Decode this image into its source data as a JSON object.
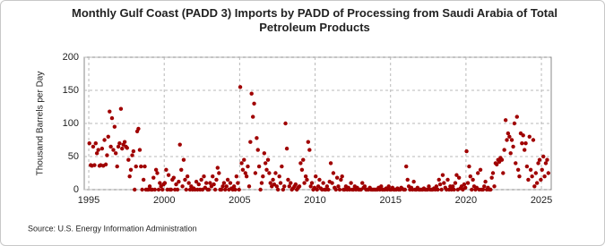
{
  "chart_data": {
    "type": "scatter",
    "title": "Monthly Gulf Coast (PADD 3) Imports by PADD of Processing from Saudi Arabia of Total Petroleum Products",
    "y_label": "Thousand Barrels per Day",
    "source": "Source: U.S. Energy Information Administration",
    "color": "#a00000",
    "grid": true,
    "xlim": [
      1994.7,
      2025.65
    ],
    "ylim": [
      0,
      200
    ],
    "xticks": [
      1995,
      2000,
      2005,
      2010,
      2015,
      2020,
      2025
    ],
    "yticks": [
      0,
      50,
      100,
      150,
      200
    ],
    "x": [
      1995.04,
      1995.13,
      1995.21,
      1995.29,
      1995.38,
      1995.46,
      1995.54,
      1995.63,
      1995.71,
      1995.79,
      1995.88,
      1995.96,
      1996.04,
      1996.13,
      1996.21,
      1996.29,
      1996.38,
      1996.46,
      1996.54,
      1996.63,
      1996.71,
      1996.79,
      1996.88,
      1996.96,
      1997.04,
      1997.13,
      1997.21,
      1997.29,
      1997.38,
      1997.46,
      1997.54,
      1997.63,
      1997.71,
      1997.79,
      1997.88,
      1997.96,
      1998.04,
      1998.13,
      1998.21,
      1998.29,
      1998.38,
      1998.46,
      1998.54,
      1998.63,
      1998.71,
      1998.79,
      1998.88,
      1998.96,
      1999.04,
      1999.13,
      1999.21,
      1999.29,
      1999.38,
      1999.46,
      1999.54,
      1999.63,
      1999.71,
      1999.79,
      1999.88,
      1999.96,
      2000.04,
      2000.13,
      2000.21,
      2000.29,
      2000.38,
      2000.46,
      2000.54,
      2000.63,
      2000.71,
      2000.79,
      2000.88,
      2000.96,
      2001.04,
      2001.13,
      2001.21,
      2001.29,
      2001.38,
      2001.46,
      2001.54,
      2001.63,
      2001.71,
      2001.79,
      2001.88,
      2001.96,
      2002.04,
      2002.13,
      2002.21,
      2002.29,
      2002.38,
      2002.46,
      2002.54,
      2002.63,
      2002.71,
      2002.79,
      2002.88,
      2002.96,
      2003.04,
      2003.13,
      2003.21,
      2003.29,
      2003.38,
      2003.46,
      2003.54,
      2003.63,
      2003.71,
      2003.79,
      2003.88,
      2003.96,
      2004.04,
      2004.13,
      2004.21,
      2004.29,
      2004.38,
      2004.46,
      2004.54,
      2004.63,
      2004.71,
      2004.79,
      2004.88,
      2004.96,
      2005.04,
      2005.13,
      2005.21,
      2005.29,
      2005.38,
      2005.46,
      2005.54,
      2005.63,
      2005.71,
      2005.79,
      2005.88,
      2005.96,
      2006.04,
      2006.13,
      2006.21,
      2006.29,
      2006.38,
      2006.46,
      2006.54,
      2006.63,
      2006.71,
      2006.79,
      2006.88,
      2006.96,
      2007.04,
      2007.13,
      2007.21,
      2007.29,
      2007.38,
      2007.46,
      2007.54,
      2007.63,
      2007.71,
      2007.79,
      2007.88,
      2007.96,
      2008.04,
      2008.13,
      2008.21,
      2008.29,
      2008.38,
      2008.46,
      2008.54,
      2008.63,
      2008.71,
      2008.79,
      2008.88,
      2008.96,
      2009.04,
      2009.13,
      2009.21,
      2009.29,
      2009.38,
      2009.46,
      2009.54,
      2009.63,
      2009.71,
      2009.79,
      2009.88,
      2009.96,
      2010.04,
      2010.13,
      2010.21,
      2010.29,
      2010.38,
      2010.46,
      2010.54,
      2010.63,
      2010.71,
      2010.79,
      2010.88,
      2010.96,
      2011.04,
      2011.13,
      2011.21,
      2011.29,
      2011.38,
      2011.46,
      2011.54,
      2011.63,
      2011.71,
      2011.79,
      2011.88,
      2011.96,
      2012.04,
      2012.13,
      2012.21,
      2012.29,
      2012.38,
      2012.46,
      2012.54,
      2012.63,
      2012.71,
      2012.79,
      2012.88,
      2012.96,
      2013.04,
      2013.13,
      2013.21,
      2013.29,
      2013.38,
      2013.46,
      2013.54,
      2013.63,
      2013.71,
      2013.79,
      2013.88,
      2013.96,
      2014.04,
      2014.13,
      2014.21,
      2014.29,
      2014.38,
      2014.46,
      2014.54,
      2014.63,
      2014.71,
      2014.79,
      2014.88,
      2014.96,
      2015.04,
      2015.13,
      2015.21,
      2015.29,
      2015.38,
      2015.46,
      2015.54,
      2015.63,
      2015.71,
      2015.79,
      2015.88,
      2015.96,
      2016.04,
      2016.13,
      2016.21,
      2016.29,
      2016.38,
      2016.46,
      2016.54,
      2016.63,
      2016.71,
      2016.79,
      2016.88,
      2016.96,
      2017.04,
      2017.13,
      2017.21,
      2017.29,
      2017.38,
      2017.46,
      2017.54,
      2017.63,
      2017.71,
      2017.79,
      2017.88,
      2017.96,
      2018.04,
      2018.13,
      2018.21,
      2018.29,
      2018.38,
      2018.46,
      2018.54,
      2018.63,
      2018.71,
      2018.79,
      2018.88,
      2018.96,
      2019.04,
      2019.13,
      2019.21,
      2019.29,
      2019.38,
      2019.46,
      2019.54,
      2019.63,
      2019.71,
      2019.79,
      2019.88,
      2019.96,
      2020.04,
      2020.13,
      2020.21,
      2020.29,
      2020.38,
      2020.46,
      2020.54,
      2020.63,
      2020.71,
      2020.79,
      2020.88,
      2020.96,
      2021.04,
      2021.13,
      2021.21,
      2021.29,
      2021.38,
      2021.46,
      2021.54,
      2021.63,
      2021.71,
      2021.79,
      2021.88,
      2021.96,
      2022.04,
      2022.13,
      2022.21,
      2022.29,
      2022.38,
      2022.46,
      2022.54,
      2022.63,
      2022.71,
      2022.79,
      2022.88,
      2022.96,
      2023.04,
      2023.13,
      2023.21,
      2023.29,
      2023.38,
      2023.46,
      2023.54,
      2023.63,
      2023.71,
      2023.79,
      2023.88,
      2023.96,
      2024.04,
      2024.13,
      2024.21,
      2024.29,
      2024.38,
      2024.46,
      2024.54,
      2024.63,
      2024.71,
      2024.79,
      2024.88,
      2024.96,
      2025.04,
      2025.13,
      2025.21,
      2025.29,
      2025.38,
      2025.46
    ],
    "values": [
      70,
      37,
      36,
      65,
      37,
      70,
      55,
      60,
      36,
      37,
      62,
      36,
      75,
      38,
      52,
      80,
      118,
      65,
      108,
      60,
      95,
      55,
      35,
      65,
      70,
      122,
      62,
      68,
      72,
      65,
      63,
      45,
      20,
      30,
      52,
      58,
      0,
      35,
      88,
      92,
      60,
      35,
      0,
      15,
      35,
      0,
      0,
      0,
      5,
      0,
      0,
      18,
      0,
      30,
      25,
      0,
      10,
      5,
      0,
      8,
      10,
      30,
      0,
      22,
      0,
      0,
      15,
      18,
      0,
      8,
      0,
      12,
      68,
      30,
      5,
      45,
      15,
      0,
      20,
      10,
      0,
      5,
      0,
      2,
      0,
      12,
      0,
      8,
      0,
      15,
      0,
      20,
      3,
      10,
      0,
      0,
      10,
      5,
      20,
      8,
      0,
      15,
      33,
      25,
      0,
      0,
      5,
      10,
      0,
      5,
      15,
      0,
      10,
      2,
      0,
      5,
      0,
      20,
      10,
      0,
      155,
      40,
      30,
      45,
      25,
      20,
      35,
      5,
      72,
      145,
      110,
      130,
      25,
      78,
      60,
      35,
      0,
      10,
      20,
      55,
      40,
      30,
      45,
      25,
      10,
      5,
      15,
      8,
      25,
      5,
      0,
      20,
      10,
      35,
      0,
      5,
      100,
      62,
      15,
      5,
      10,
      0,
      2,
      5,
      8,
      0,
      3,
      5,
      40,
      30,
      45,
      10,
      20,
      15,
      72,
      60,
      5,
      10,
      0,
      3,
      20,
      0,
      5,
      15,
      2,
      0,
      10,
      0,
      0,
      5,
      0,
      12,
      40,
      10,
      25,
      3,
      0,
      18,
      5,
      0,
      15,
      20,
      0,
      0,
      5,
      0,
      3,
      0,
      10,
      0,
      0,
      5,
      0,
      3,
      0,
      0,
      0,
      10,
      3,
      5,
      0,
      0,
      0,
      3,
      0,
      0,
      0,
      0,
      0,
      0,
      3,
      0,
      5,
      0,
      0,
      0,
      2,
      0,
      5,
      0,
      0,
      3,
      0,
      0,
      0,
      2,
      0,
      0,
      3,
      1,
      0,
      0,
      35,
      15,
      5,
      0,
      3,
      0,
      12,
      0,
      0,
      3,
      0,
      0,
      0,
      0,
      2,
      0,
      0,
      0,
      5,
      0,
      0,
      0,
      2,
      0,
      5,
      0,
      15,
      8,
      0,
      22,
      10,
      3,
      0,
      15,
      0,
      5,
      0,
      5,
      0,
      10,
      22,
      0,
      18,
      2,
      5,
      0,
      8,
      3,
      58,
      10,
      35,
      20,
      0,
      15,
      5,
      0,
      3,
      25,
      0,
      30,
      0,
      0,
      5,
      12,
      0,
      3,
      0,
      0,
      18,
      25,
      5,
      40,
      38,
      45,
      42,
      48,
      45,
      25,
      60,
      105,
      75,
      85,
      80,
      55,
      75,
      65,
      100,
      40,
      110,
      30,
      20,
      85,
      70,
      82,
      60,
      70,
      35,
      15,
      80,
      30,
      20,
      75,
      5,
      25,
      10,
      40,
      45,
      15,
      30,
      50,
      20,
      40,
      45,
      25
    ]
  }
}
